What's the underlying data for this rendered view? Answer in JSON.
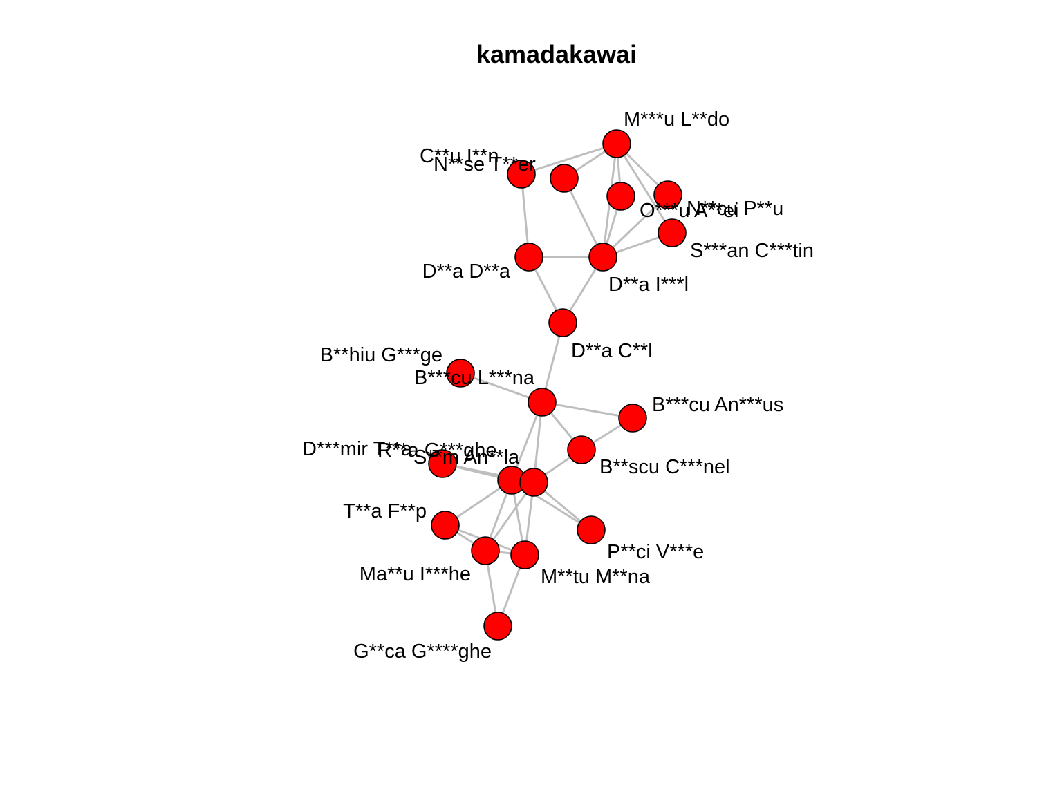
{
  "title": "kamadakawai",
  "colors": {
    "node_fill": "#ff0000",
    "node_stroke": "#000000",
    "edge": "#bebebe",
    "text": "#000000"
  },
  "nodes": [
    {
      "id": "mld",
      "label": "M***u L**do"
    },
    {
      "id": "cl",
      "label": "C**u I**n"
    },
    {
      "id": "nt",
      "label": "N**se T**er"
    },
    {
      "id": "oa",
      "label": "O***u A**ei"
    },
    {
      "id": "np",
      "label": "N**cu P**u"
    },
    {
      "id": "sc",
      "label": "S***an C***tin"
    },
    {
      "id": "dd",
      "label": "D**a D**a"
    },
    {
      "id": "di",
      "label": "D**a I***l"
    },
    {
      "id": "dc",
      "label": "D**a C**l"
    },
    {
      "id": "bg",
      "label": "B**hiu G***ge"
    },
    {
      "id": "bl",
      "label": "B***cu L***na"
    },
    {
      "id": "ba",
      "label": "B***cu An***us"
    },
    {
      "id": "bc",
      "label": "B**scu C***nel"
    },
    {
      "id": "dm",
      "label": "D***mir T**a"
    },
    {
      "id": "rg",
      "label": "R**a G***ghe"
    },
    {
      "id": "sa",
      "label": "S**m An**la"
    },
    {
      "id": "tf",
      "label": "T**a F**p"
    },
    {
      "id": "pv",
      "label": "P**ci V***e"
    },
    {
      "id": "mi",
      "label": "Ma**u I***he"
    },
    {
      "id": "mm",
      "label": "M**tu M**na"
    },
    {
      "id": "gg",
      "label": "G**ca G****ghe"
    }
  ],
  "edges": [
    [
      "mld",
      "nt"
    ],
    [
      "mld",
      "cl"
    ],
    [
      "mld",
      "oa"
    ],
    [
      "mld",
      "np"
    ],
    [
      "mld",
      "sc"
    ],
    [
      "mld",
      "di"
    ],
    [
      "cl",
      "dd"
    ],
    [
      "nt",
      "di"
    ],
    [
      "oa",
      "di"
    ],
    [
      "np",
      "di"
    ],
    [
      "sc",
      "di"
    ],
    [
      "dd",
      "di"
    ],
    [
      "dd",
      "dc"
    ],
    [
      "di",
      "dc"
    ],
    [
      "dc",
      "bl"
    ],
    [
      "bg",
      "bl"
    ],
    [
      "bl",
      "ba"
    ],
    [
      "bl",
      "bc"
    ],
    [
      "bl",
      "rg"
    ],
    [
      "bl",
      "sa"
    ],
    [
      "ba",
      "bc"
    ],
    [
      "bc",
      "sa"
    ],
    [
      "dm",
      "rg"
    ],
    [
      "dm",
      "sa"
    ],
    [
      "rg",
      "sa"
    ],
    [
      "rg",
      "tf"
    ],
    [
      "rg",
      "mi"
    ],
    [
      "rg",
      "mm"
    ],
    [
      "rg",
      "pv"
    ],
    [
      "sa",
      "mi"
    ],
    [
      "sa",
      "mm"
    ],
    [
      "sa",
      "pv"
    ],
    [
      "tf",
      "mi"
    ],
    [
      "tf",
      "mm"
    ],
    [
      "mi",
      "mm"
    ],
    [
      "mi",
      "gg"
    ],
    [
      "mm",
      "gg"
    ]
  ]
}
